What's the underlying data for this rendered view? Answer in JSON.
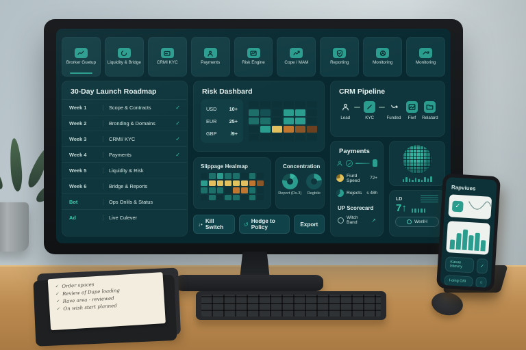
{
  "nav": {
    "items": [
      {
        "label": "Brorker Guetup",
        "icon": "trend-icon"
      },
      {
        "label": "Liquidity & Bridge",
        "icon": "swirl-icon"
      },
      {
        "label": "CRMI KYC",
        "icon": "card-icon"
      },
      {
        "label": "Payments",
        "icon": "person-icon"
      },
      {
        "label": "Risk Engine",
        "icon": "gauge-icon"
      },
      {
        "label": "Cope / MAM",
        "icon": "chart-icon"
      },
      {
        "label": "Reporting",
        "icon": "shield-check-icon"
      },
      {
        "label": "Monitoring",
        "icon": "radar-icon"
      },
      {
        "label": "Monitoring",
        "icon": "pulse-icon"
      }
    ]
  },
  "roadmap": {
    "title": "30-Day Launch Roadmap",
    "rows": [
      {
        "week": "Week 1",
        "task": "Scope & Contracts",
        "check": "✓"
      },
      {
        "week": "Week 2",
        "task": "Bronding & Domains",
        "check": "✓"
      },
      {
        "week": "Week 3",
        "task": "CRMI/ KYC",
        "check": "✓"
      },
      {
        "week": "Week 4",
        "task": "Payments",
        "check": "✓"
      },
      {
        "week": "Week 5",
        "task": "Liquidity & Risk",
        "check": ""
      },
      {
        "week": "Week 6",
        "task": "Bridge & Reports",
        "check": ""
      },
      {
        "week": "Bot",
        "task": "Ops Onlils & Status",
        "check": ""
      },
      {
        "week": "Ad",
        "task": "Live Culever",
        "check": ""
      }
    ]
  },
  "risk": {
    "title": "Risk Dashbard",
    "rows": [
      {
        "code": "USD",
        "value": "10+"
      },
      {
        "code": "EUR",
        "value": "25+"
      },
      {
        "code": "GBP",
        "value": "/9+"
      }
    ]
  },
  "slippage": {
    "title": "Slippage Healmap"
  },
  "concentration": {
    "title": "Concentration",
    "donuts": [
      {
        "label": "Report (Ds.3)"
      },
      {
        "label": "Regbile"
      }
    ]
  },
  "actions": {
    "kill": "Kill Switch",
    "hedge": "Hedge to Policy",
    "export": "Export"
  },
  "icons": {
    "kill": "↓•",
    "hedge": "↺",
    "scorecard_arrow": "↗",
    "check": "✓",
    "gear": "○",
    "info": "●"
  },
  "crm": {
    "title": "CRM Pipeline",
    "stages": [
      {
        "label": "Lead",
        "icon": "person-icon"
      },
      {
        "label": "KYC",
        "icon": "pen-square-icon"
      },
      {
        "label": "Funded",
        "icon": "hook-icon"
      },
      {
        "label": "Fiwf",
        "icon": "image-icon"
      },
      {
        "label": "Relatard",
        "icon": "folder-icon"
      }
    ]
  },
  "payments": {
    "title": "Payments",
    "metrics": [
      {
        "label": "Fiurd Speed",
        "value": "72+"
      },
      {
        "label": "Rejects",
        "value": "s 48h"
      }
    ],
    "scorecard": {
      "title": "UP Scorecard",
      "item": "Witch Band"
    }
  },
  "mini": {
    "ld_label": "LD",
    "ld_value": "7↑",
    "ld_button": "WenlH"
  },
  "palette": {
    "d": "#0d3338",
    "t": "#155055",
    "g": "#1d6f69",
    "T": "#2a9d8f",
    "y": "#e2c05e",
    "o": "#c0762f",
    "b": "#8a5527",
    "B": "#6b4220"
  },
  "heatmaps": {
    "risk": [
      "dddddd",
      "gtdTTd",
      "ggdTTd",
      "dTyobB",
      "dddddd"
    ],
    "slippage": [
      "dgTggdgd",
      "Tyyyyyob",
      "gggdoogd",
      "dgdggdgd"
    ]
  },
  "bars": {
    "globe": [
      4,
      7,
      5,
      3,
      6,
      4,
      3,
      7,
      5,
      8
    ],
    "ld": [
      6,
      6,
      6,
      6,
      6
    ]
  },
  "phone": {
    "title": "Rapviues",
    "bars": [
      14,
      24,
      30,
      22,
      26,
      16
    ],
    "rows": [
      {
        "label": "Kasue Intovny"
      },
      {
        "label": "I-oing O/9"
      }
    ]
  },
  "note": {
    "check": "✓",
    "items": [
      "Order spaces",
      "Review of Dape loading",
      "Rave area - reviewed",
      "On wish start planned"
    ]
  }
}
